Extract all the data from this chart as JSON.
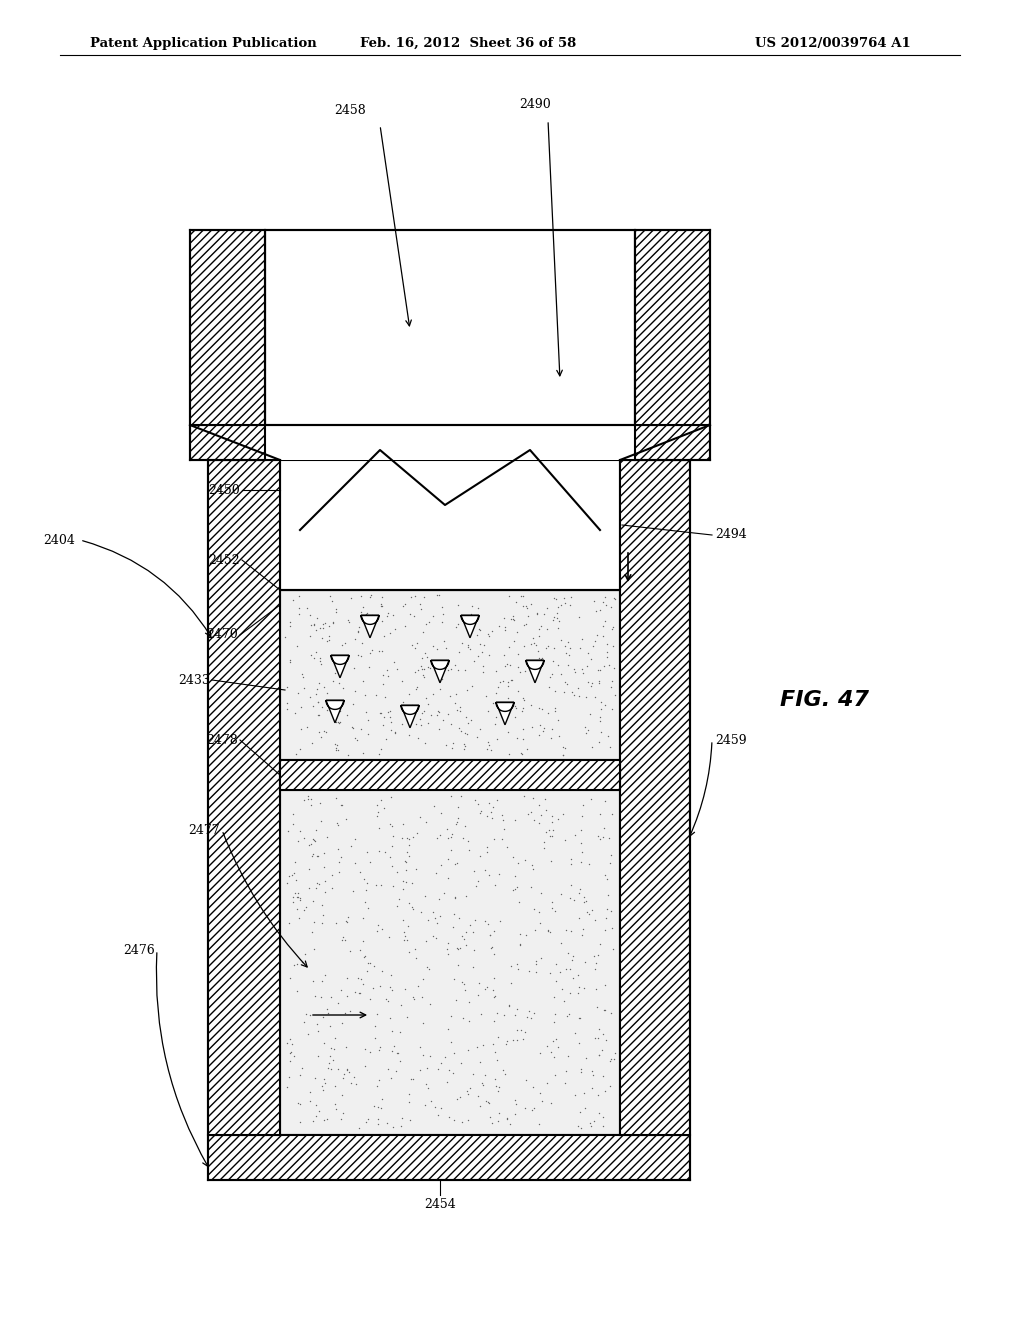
{
  "title_left": "Patent Application Publication",
  "title_mid": "Feb. 16, 2012  Sheet 36 of 58",
  "title_right": "US 2012/0039764 A1",
  "fig_label": "FIG. 47",
  "background": "#ffffff"
}
